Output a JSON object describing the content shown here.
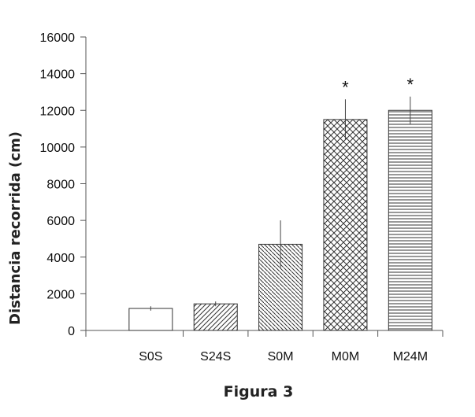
{
  "chart_data": {
    "type": "bar",
    "categories": [
      "S0S",
      "S24S",
      "S0M",
      "M0M",
      "M24M"
    ],
    "values": [
      1200,
      1450,
      4700,
      11500,
      12000
    ],
    "errors": [
      120,
      130,
      1300,
      1100,
      750
    ],
    "annotations": [
      "",
      "",
      "",
      "*",
      "*"
    ],
    "patterns": [
      "none",
      "diag-up-sparse",
      "diag-down-dense",
      "crosshatch",
      "horizontal"
    ],
    "title": "",
    "xlabel": "",
    "ylabel": "Distancia recorrida (cm)",
    "ylim": [
      0,
      16000
    ],
    "yticks": [
      0,
      2000,
      4000,
      6000,
      8000,
      10000,
      12000,
      14000,
      16000
    ],
    "grid": false,
    "legend": "none"
  },
  "caption": "Figura 3",
  "colors": {
    "bar_fill": "#ffffff",
    "stroke": "#333333",
    "axis": "#555555"
  }
}
